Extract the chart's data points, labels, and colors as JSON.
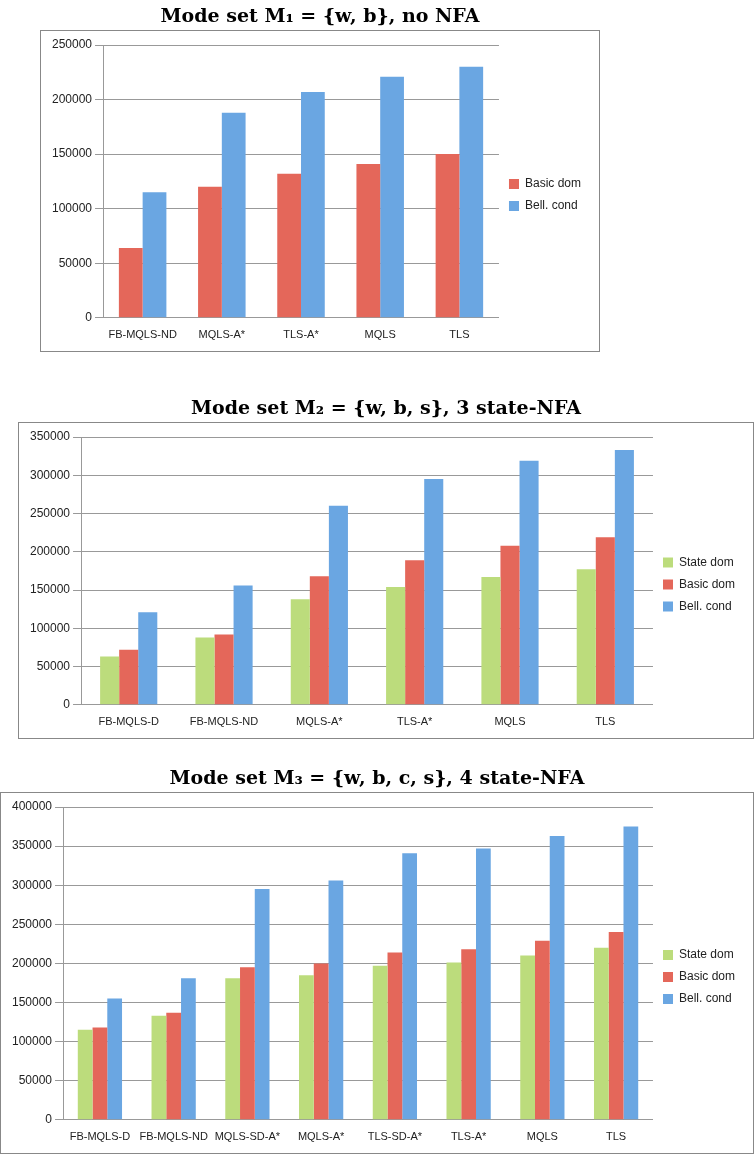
{
  "chart_data": [
    {
      "type": "bar",
      "title": "Mode set M₁ = {w, b}, no NFA",
      "categories": [
        "FB-MQLS-ND",
        "MQLS-A*",
        "TLS-A*",
        "MQLS",
        "TLS"
      ],
      "series": [
        {
          "name": "Basic dom",
          "color": "#e4675a",
          "values": [
            64000,
            120000,
            132000,
            141000,
            150000
          ]
        },
        {
          "name": "Bell. cond",
          "color": "#6aa6e2",
          "values": [
            115000,
            188000,
            207000,
            221000,
            230000
          ]
        }
      ],
      "ylim": [
        0,
        250000
      ],
      "yticks": [
        0,
        50000,
        100000,
        150000,
        200000,
        250000
      ],
      "grid": "y",
      "legend": "right"
    },
    {
      "type": "bar",
      "title": "Mode set M₂ = {w, b, s}, 3 state-NFA",
      "categories": [
        "FB-MQLS-D",
        "FB-MQLS-ND",
        "MQLS-A*",
        "TLS-A*",
        "MQLS",
        "TLS"
      ],
      "series": [
        {
          "name": "State dom",
          "color": "#bcdc7c",
          "values": [
            63000,
            88000,
            138000,
            154000,
            167000,
            177000
          ]
        },
        {
          "name": "Basic dom",
          "color": "#e4675a",
          "values": [
            72000,
            92000,
            168000,
            189000,
            208000,
            219000
          ]
        },
        {
          "name": "Bell. cond",
          "color": "#6aa6e2",
          "values": [
            121000,
            156000,
            260000,
            295000,
            319000,
            333000
          ]
        }
      ],
      "ylim": [
        0,
        350000
      ],
      "yticks": [
        0,
        50000,
        100000,
        150000,
        200000,
        250000,
        300000,
        350000
      ],
      "grid": "y",
      "legend": "right"
    },
    {
      "type": "bar",
      "title": "Mode set M₃ = {w, b, c, s}, 4 state-NFA",
      "categories": [
        "FB-MQLS-D",
        "FB-MQLS-ND",
        "MQLS-SD-A*",
        "MQLS-A*",
        "TLS-SD-A*",
        "TLS-A*",
        "MQLS",
        "TLS"
      ],
      "series": [
        {
          "name": "State dom",
          "color": "#bcdc7c",
          "values": [
            115000,
            133000,
            181000,
            185000,
            197000,
            201000,
            210000,
            220000
          ]
        },
        {
          "name": "Basic dom",
          "color": "#e4675a",
          "values": [
            118000,
            137000,
            195000,
            200000,
            214000,
            218000,
            229000,
            240000
          ]
        },
        {
          "name": "Bell. cond",
          "color": "#6aa6e2",
          "values": [
            155000,
            181000,
            295000,
            306000,
            341000,
            347000,
            363000,
            375000
          ]
        }
      ],
      "ylim": [
        0,
        400000
      ],
      "yticks": [
        0,
        50000,
        100000,
        150000,
        200000,
        250000,
        300000,
        350000,
        400000
      ],
      "grid": "y",
      "legend": "right"
    }
  ]
}
